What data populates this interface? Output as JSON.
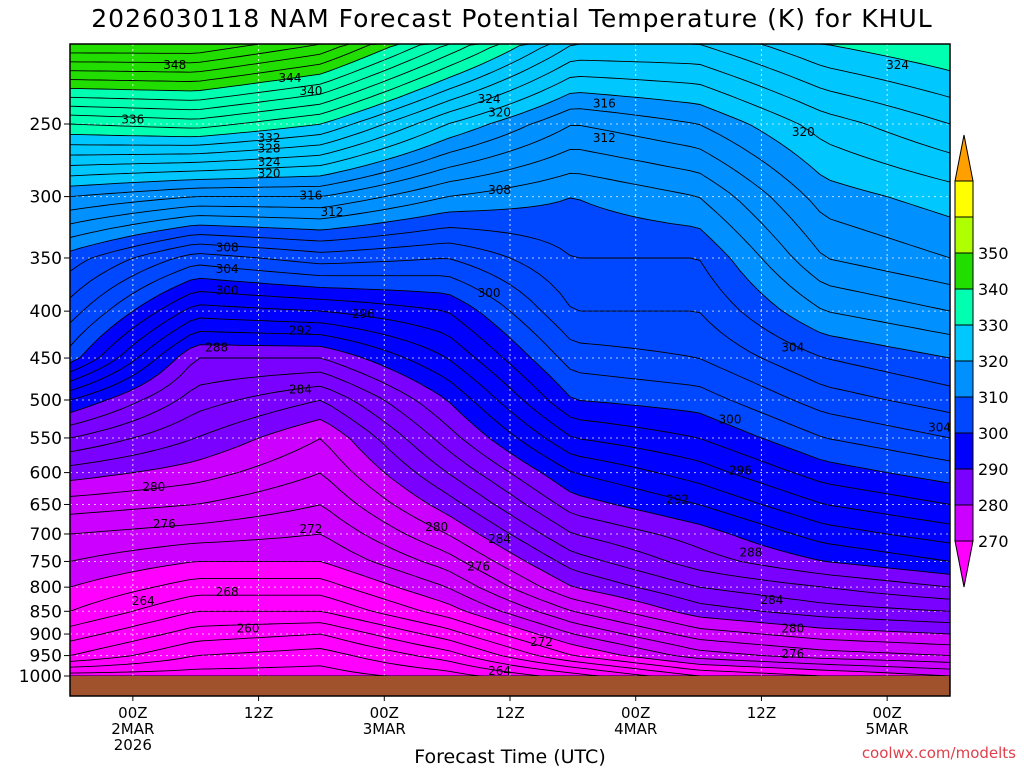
{
  "header": {
    "title": "2026030118 NAM Forecast Potential Temperature (K) for KHUL"
  },
  "footer": {
    "credit": "coolwx.com/modelts"
  },
  "colors": {
    "ground": "#a0522d",
    "band_colors": [
      "#ff00ff",
      "#cc00ff",
      "#7a00ff",
      "#0000ff",
      "#0048ff",
      "#0090ff",
      "#00c8ff",
      "#00ffb0",
      "#22dd00",
      "#b0ff00",
      "#ffff00",
      "#ffa000"
    ]
  },
  "chart_data": {
    "type": "contour",
    "title": "2026030118 NAM Forecast Potential Temperature (K) for KHUL",
    "xlabel": "Forecast Time (UTC)",
    "ylabel": "",
    "y_axis_scale": "log-pressure (inverted)",
    "ylim": [
      1000,
      200
    ],
    "y_ticks": [
      250,
      300,
      350,
      400,
      450,
      500,
      550,
      600,
      650,
      700,
      750,
      800,
      850,
      900,
      950,
      1000
    ],
    "x_ticks": [
      {
        "hour": 6,
        "lines": [
          "00Z",
          "2MAR",
          "2026"
        ]
      },
      {
        "hour": 18,
        "lines": [
          "12Z"
        ]
      },
      {
        "hour": 30,
        "lines": [
          "00Z",
          "3MAR"
        ]
      },
      {
        "hour": 42,
        "lines": [
          "12Z"
        ]
      },
      {
        "hour": 54,
        "lines": [
          "00Z",
          "4MAR"
        ]
      },
      {
        "hour": 66,
        "lines": [
          "12Z"
        ]
      },
      {
        "hour": 78,
        "lines": [
          "00Z",
          "5MAR"
        ]
      }
    ],
    "x_range_hours": [
      0,
      84
    ],
    "colorbar": {
      "labels": [
        270,
        280,
        290,
        300,
        310,
        320,
        330,
        340,
        350
      ]
    },
    "grid": true,
    "profiles": [
      {
        "hour": 0,
        "levels": [
          [
            1000,
            255
          ],
          [
            950,
            262
          ],
          [
            900,
            265
          ],
          [
            850,
            268
          ],
          [
            800,
            270
          ],
          [
            750,
            272
          ],
          [
            700,
            274
          ],
          [
            650,
            277
          ],
          [
            600,
            281
          ],
          [
            550,
            286
          ],
          [
            500,
            292
          ],
          [
            450,
            301
          ],
          [
            400,
            305
          ],
          [
            350,
            309
          ],
          [
            300,
            318
          ],
          [
            250,
            332
          ],
          [
            200,
            350
          ]
        ]
      },
      {
        "hour": 12,
        "levels": [
          [
            1000,
            255
          ],
          [
            950,
            258
          ],
          [
            900,
            261
          ],
          [
            850,
            264
          ],
          [
            800,
            267
          ],
          [
            750,
            270
          ],
          [
            700,
            273
          ],
          [
            650,
            276
          ],
          [
            600,
            279
          ],
          [
            550,
            282
          ],
          [
            500,
            285
          ],
          [
            450,
            288
          ],
          [
            400,
            295
          ],
          [
            350,
            303
          ],
          [
            300,
            316
          ],
          [
            250,
            333
          ],
          [
            200,
            350
          ]
        ]
      },
      {
        "hour": 24,
        "levels": [
          [
            1000,
            255
          ],
          [
            950,
            257
          ],
          [
            900,
            260
          ],
          [
            850,
            264
          ],
          [
            800,
            267
          ],
          [
            750,
            270
          ],
          [
            700,
            272
          ],
          [
            650,
            274
          ],
          [
            600,
            276
          ],
          [
            550,
            278
          ],
          [
            500,
            282
          ],
          [
            450,
            288
          ],
          [
            400,
            296
          ],
          [
            350,
            305
          ],
          [
            300,
            316
          ],
          [
            250,
            330
          ],
          [
            200,
            346
          ]
        ]
      },
      {
        "hour": 36,
        "levels": [
          [
            1000,
            257
          ],
          [
            950,
            261
          ],
          [
            900,
            265
          ],
          [
            850,
            269
          ],
          [
            800,
            272
          ],
          [
            750,
            275
          ],
          [
            700,
            278
          ],
          [
            650,
            281
          ],
          [
            600,
            284
          ],
          [
            550,
            287
          ],
          [
            500,
            290
          ],
          [
            450,
            294
          ],
          [
            400,
            298
          ],
          [
            350,
            304
          ],
          [
            300,
            312
          ],
          [
            250,
            322
          ],
          [
            200,
            336
          ]
        ]
      },
      {
        "hour": 48,
        "levels": [
          [
            1000,
            261
          ],
          [
            950,
            268
          ],
          [
            900,
            272
          ],
          [
            850,
            276
          ],
          [
            800,
            280
          ],
          [
            750,
            283
          ],
          [
            700,
            286
          ],
          [
            650,
            289
          ],
          [
            600,
            292
          ],
          [
            550,
            296
          ],
          [
            500,
            300
          ],
          [
            450,
            303
          ],
          [
            400,
            306
          ],
          [
            350,
            308
          ],
          [
            300,
            310
          ],
          [
            250,
            316
          ],
          [
            200,
            326
          ]
        ]
      },
      {
        "hour": 60,
        "levels": [
          [
            1000,
            266
          ],
          [
            950,
            273
          ],
          [
            900,
            277
          ],
          [
            850,
            281
          ],
          [
            800,
            284
          ],
          [
            750,
            287
          ],
          [
            700,
            289
          ],
          [
            650,
            292
          ],
          [
            600,
            295
          ],
          [
            550,
            298
          ],
          [
            500,
            301
          ],
          [
            450,
            304
          ],
          [
            400,
            306
          ],
          [
            350,
            308
          ],
          [
            300,
            312
          ],
          [
            250,
            318
          ],
          [
            200,
            326
          ]
        ]
      },
      {
        "hour": 72,
        "levels": [
          [
            1000,
            268
          ],
          [
            950,
            275
          ],
          [
            900,
            279
          ],
          [
            850,
            283
          ],
          [
            800,
            286
          ],
          [
            750,
            290
          ],
          [
            700,
            293
          ],
          [
            650,
            296
          ],
          [
            600,
            299
          ],
          [
            550,
            302
          ],
          [
            500,
            305
          ],
          [
            450,
            308
          ],
          [
            400,
            312
          ],
          [
            350,
            316
          ],
          [
            300,
            319
          ],
          [
            250,
            323
          ],
          [
            200,
            330
          ]
        ]
      },
      {
        "hour": 84,
        "levels": [
          [
            1000,
            270
          ],
          [
            950,
            276
          ],
          [
            900,
            280
          ],
          [
            850,
            284
          ],
          [
            800,
            288
          ],
          [
            750,
            292
          ],
          [
            700,
            295
          ],
          [
            650,
            298
          ],
          [
            600,
            301
          ],
          [
            550,
            304
          ],
          [
            500,
            307
          ],
          [
            450,
            310
          ],
          [
            400,
            314
          ],
          [
            350,
            318
          ],
          [
            300,
            321
          ],
          [
            250,
            326
          ],
          [
            200,
            332
          ]
        ]
      }
    ],
    "contour_labels": [
      {
        "value": 348,
        "hour": 10,
        "p": 212
      },
      {
        "value": 344,
        "hour": 21,
        "p": 220
      },
      {
        "value": 340,
        "hour": 23,
        "p": 228
      },
      {
        "value": 336,
        "hour": 6,
        "p": 247
      },
      {
        "value": 332,
        "hour": 19,
        "p": 259
      },
      {
        "value": 328,
        "hour": 19,
        "p": 266
      },
      {
        "value": 324,
        "hour": 19,
        "p": 275
      },
      {
        "value": 320,
        "hour": 19,
        "p": 283
      },
      {
        "value": 316,
        "hour": 23,
        "p": 299
      },
      {
        "value": 312,
        "hour": 25,
        "p": 312
      },
      {
        "value": 308,
        "hour": 15,
        "p": 341
      },
      {
        "value": 304,
        "hour": 15,
        "p": 360
      },
      {
        "value": 300,
        "hour": 15,
        "p": 380
      },
      {
        "value": 296,
        "hour": 28,
        "p": 403
      },
      {
        "value": 292,
        "hour": 22,
        "p": 420
      },
      {
        "value": 288,
        "hour": 14,
        "p": 438
      },
      {
        "value": 284,
        "hour": 22,
        "p": 487
      },
      {
        "value": 280,
        "hour": 8,
        "p": 622
      },
      {
        "value": 276,
        "hour": 9,
        "p": 683
      },
      {
        "value": 272,
        "hour": 23,
        "p": 691
      },
      {
        "value": 268,
        "hour": 15,
        "p": 810
      },
      {
        "value": 264,
        "hour": 7,
        "p": 828
      },
      {
        "value": 260,
        "hour": 17,
        "p": 888
      },
      {
        "value": 280,
        "hour": 35,
        "p": 688
      },
      {
        "value": 284,
        "hour": 41,
        "p": 709
      },
      {
        "value": 276,
        "hour": 39,
        "p": 760
      },
      {
        "value": 272,
        "hour": 45,
        "p": 918
      },
      {
        "value": 264,
        "hour": 41,
        "p": 987
      },
      {
        "value": 324,
        "hour": 40,
        "p": 233
      },
      {
        "value": 320,
        "hour": 41,
        "p": 242
      },
      {
        "value": 316,
        "hour": 51,
        "p": 236
      },
      {
        "value": 312,
        "hour": 51,
        "p": 259
      },
      {
        "value": 308,
        "hour": 41,
        "p": 295
      },
      {
        "value": 300,
        "hour": 40,
        "p": 382
      },
      {
        "value": 320,
        "hour": 70,
        "p": 255
      },
      {
        "value": 324,
        "hour": 79,
        "p": 212
      },
      {
        "value": 304,
        "hour": 69,
        "p": 438
      },
      {
        "value": 300,
        "hour": 63,
        "p": 525
      },
      {
        "value": 296,
        "hour": 64,
        "p": 597
      },
      {
        "value": 292,
        "hour": 58,
        "p": 642
      },
      {
        "value": 288,
        "hour": 65,
        "p": 733
      },
      {
        "value": 284,
        "hour": 67,
        "p": 826
      },
      {
        "value": 280,
        "hour": 69,
        "p": 888
      },
      {
        "value": 276,
        "hour": 69,
        "p": 946
      },
      {
        "value": 304,
        "hour": 83,
        "p": 536
      }
    ]
  }
}
